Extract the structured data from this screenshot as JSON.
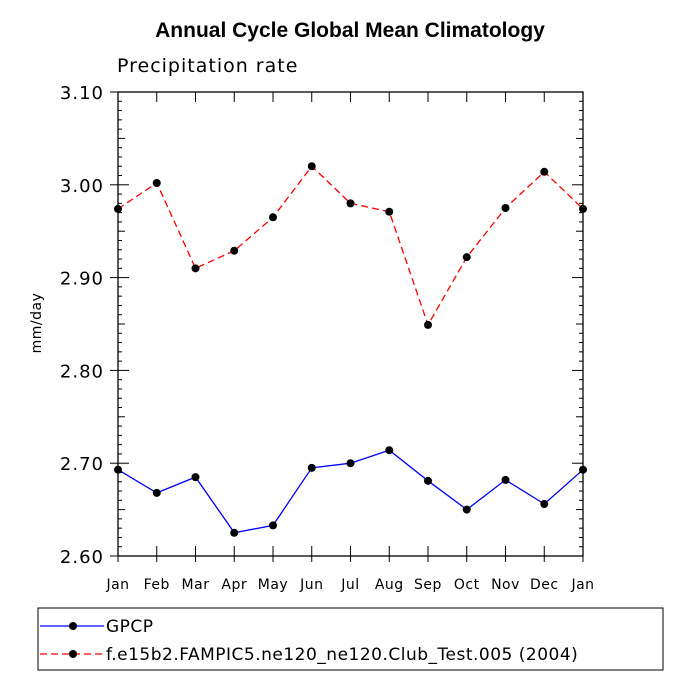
{
  "chart_data": {
    "type": "line",
    "title": "Annual Cycle Global Mean Climatology",
    "subtitle": "Precipitation rate",
    "xlabel": "",
    "ylabel": "mm/day",
    "categories": [
      "Jan",
      "Feb",
      "Mar",
      "Apr",
      "May",
      "Jun",
      "Jul",
      "Aug",
      "Sep",
      "Oct",
      "Nov",
      "Dec",
      "Jan"
    ],
    "ylim": [
      2.6,
      3.1
    ],
    "yticks": [
      "2.60",
      "2.70",
      "2.80",
      "2.90",
      "3.00",
      "3.10"
    ],
    "series": [
      {
        "name": "GPCP",
        "color": "#0000ff",
        "dash": "solid",
        "values": [
          2.693,
          2.668,
          2.685,
          2.625,
          2.633,
          2.695,
          2.7,
          2.714,
          2.681,
          2.65,
          2.682,
          2.656,
          2.693
        ]
      },
      {
        "name": "f.e15b2.FAMPIC5.ne120_ne120.Club_Test.005 (2004)",
        "color": "#ff0000",
        "dash": "dashed",
        "values": [
          2.974,
          3.002,
          2.91,
          2.929,
          2.965,
          3.02,
          2.98,
          2.971,
          2.849,
          2.922,
          2.975,
          3.014,
          2.974
        ]
      }
    ],
    "legend_position": "bottom"
  }
}
